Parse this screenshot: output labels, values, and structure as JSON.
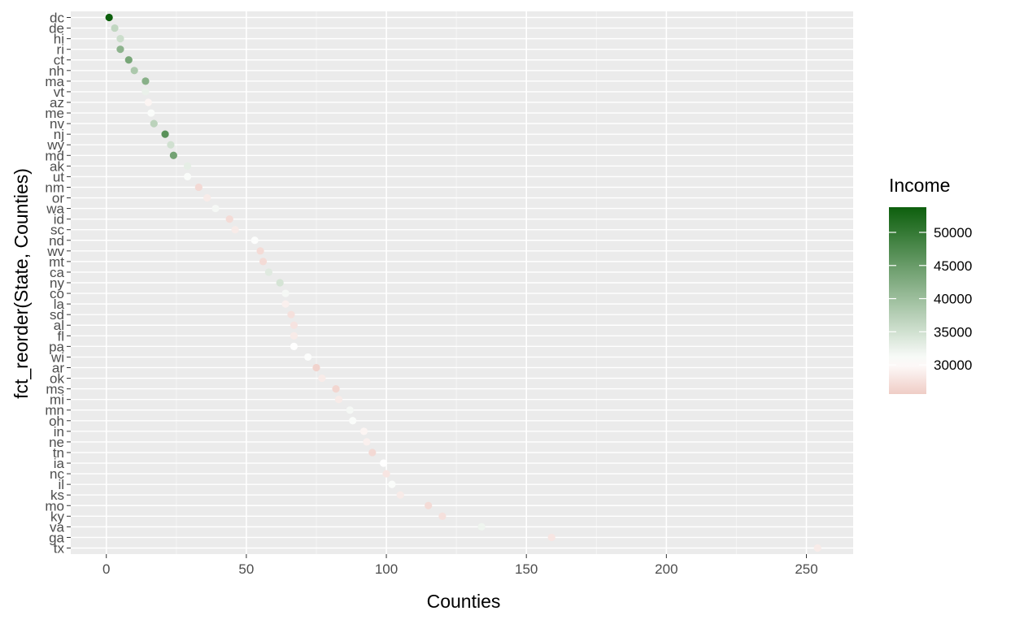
{
  "chart_data": {
    "type": "scatter",
    "title": "",
    "xlabel": "Counties",
    "ylabel": "fct_reorder(State, Counties)",
    "xlim": [
      -12.7,
      266.7
    ],
    "x_ticks": [
      0,
      50,
      100,
      150,
      200,
      250
    ],
    "x_tick_labels": [
      "0",
      "50",
      "100",
      "150",
      "200",
      "250"
    ],
    "grid": true,
    "legend": {
      "title": "Income",
      "placement": "right",
      "min": 25600,
      "max": 53800,
      "ticks": [
        30000,
        35000,
        40000,
        45000,
        50000
      ],
      "tick_labels": [
        "30000",
        "35000",
        "40000",
        "45000",
        "50000"
      ],
      "color_low": "#efcdc6",
      "color_mid": "#ffffff",
      "color_high": "#0d5f0d",
      "midpoint": 30500
    },
    "colors": {
      "panel_bg": "#ebebeb",
      "grid_major": "#ffffff",
      "grid_minor": "#f5f5f5"
    },
    "points": [
      {
        "state": "tx",
        "counties": 254,
        "income": 28500
      },
      {
        "state": "ga",
        "counties": 159,
        "income": 28000
      },
      {
        "state": "va",
        "counties": 134,
        "income": 32000
      },
      {
        "state": "ky",
        "counties": 120,
        "income": 27500
      },
      {
        "state": "mo",
        "counties": 115,
        "income": 27000
      },
      {
        "state": "ks",
        "counties": 105,
        "income": 28500
      },
      {
        "state": "il",
        "counties": 102,
        "income": 31000
      },
      {
        "state": "nc",
        "counties": 100,
        "income": 28000
      },
      {
        "state": "ia",
        "counties": 99,
        "income": 30500
      },
      {
        "state": "tn",
        "counties": 95,
        "income": 26800
      },
      {
        "state": "ne",
        "counties": 93,
        "income": 29000
      },
      {
        "state": "in",
        "counties": 92,
        "income": 29500
      },
      {
        "state": "oh",
        "counties": 88,
        "income": 31000
      },
      {
        "state": "mn",
        "counties": 87,
        "income": 31500
      },
      {
        "state": "mi",
        "counties": 83,
        "income": 28500
      },
      {
        "state": "ms",
        "counties": 82,
        "income": 26500
      },
      {
        "state": "ok",
        "counties": 77,
        "income": 28500
      },
      {
        "state": "ar",
        "counties": 75,
        "income": 26200
      },
      {
        "state": "wi",
        "counties": 72,
        "income": 30800
      },
      {
        "state": "pa",
        "counties": 67,
        "income": 30500
      },
      {
        "state": "fl",
        "counties": 67,
        "income": 28500
      },
      {
        "state": "al",
        "counties": 67,
        "income": 27800
      },
      {
        "state": "sd",
        "counties": 66,
        "income": 27500
      },
      {
        "state": "la",
        "counties": 64,
        "income": 29000
      },
      {
        "state": "co",
        "counties": 64,
        "income": 31500
      },
      {
        "state": "ny",
        "counties": 62,
        "income": 34500
      },
      {
        "state": "ca",
        "counties": 58,
        "income": 33500
      },
      {
        "state": "mt",
        "counties": 56,
        "income": 27000
      },
      {
        "state": "wv",
        "counties": 55,
        "income": 27000
      },
      {
        "state": "nd",
        "counties": 53,
        "income": 30800
      },
      {
        "state": "sc",
        "counties": 46,
        "income": 28500
      },
      {
        "state": "id",
        "counties": 44,
        "income": 27000
      },
      {
        "state": "wa",
        "counties": 39,
        "income": 31500
      },
      {
        "state": "or",
        "counties": 36,
        "income": 28500
      },
      {
        "state": "nm",
        "counties": 33,
        "income": 26800
      },
      {
        "state": "ut",
        "counties": 29,
        "income": 31000
      },
      {
        "state": "ak",
        "counties": 29,
        "income": 33000
      },
      {
        "state": "md",
        "counties": 24,
        "income": 44000
      },
      {
        "state": "wy",
        "counties": 23,
        "income": 35000
      },
      {
        "state": "nj",
        "counties": 21,
        "income": 46500
      },
      {
        "state": "nv",
        "counties": 17,
        "income": 37000
      },
      {
        "state": "me",
        "counties": 16,
        "income": 31000
      },
      {
        "state": "az",
        "counties": 15,
        "income": 29500
      },
      {
        "state": "vt",
        "counties": 14,
        "income": 32500
      },
      {
        "state": "ma",
        "counties": 14,
        "income": 42000
      },
      {
        "state": "nh",
        "counties": 10,
        "income": 38500
      },
      {
        "state": "ct",
        "counties": 8,
        "income": 43500
      },
      {
        "state": "ri",
        "counties": 5,
        "income": 41500
      },
      {
        "state": "hi",
        "counties": 5,
        "income": 35500
      },
      {
        "state": "de",
        "counties": 3,
        "income": 36500
      },
      {
        "state": "dc",
        "counties": 1,
        "income": 53800
      }
    ]
  }
}
